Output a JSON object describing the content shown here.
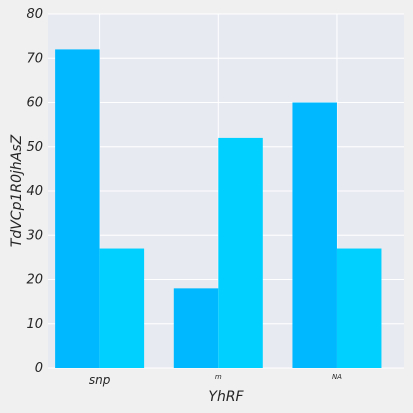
{
  "chart_data": {
    "type": "bar",
    "xlabel": "YhRF",
    "ylabel": "TdVCp1R0jhAsZ",
    "categories": [
      "snp",
      "m",
      "NA"
    ],
    "series": [
      {
        "values": [
          72,
          18,
          60
        ],
        "color": "#00b8ff"
      },
      {
        "values": [
          27,
          52,
          27
        ],
        "color": "#00d0ff"
      }
    ],
    "ylim": [
      0,
      80
    ],
    "yticks": [
      0,
      10,
      20,
      30,
      40,
      50,
      60,
      70,
      80
    ],
    "grid": true,
    "colors": {
      "background": "#f0f0f0",
      "plot_area": "#e8eaf2",
      "grid": "#ffffff",
      "text": "#262626"
    }
  }
}
